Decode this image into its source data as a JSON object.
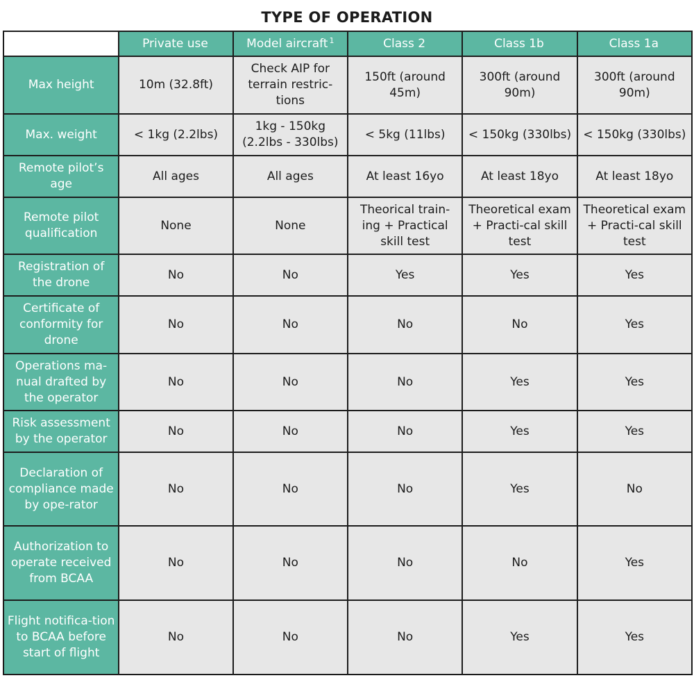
{
  "title": "TYPE OF OPERATION",
  "columns": [
    {
      "label": "Private use",
      "sup": ""
    },
    {
      "label": "Model aircraft",
      "sup": "1"
    },
    {
      "label": "Class 2",
      "sup": ""
    },
    {
      "label": "Class 1b",
      "sup": ""
    },
    {
      "label": "Class 1a",
      "sup": ""
    }
  ],
  "rows": [
    {
      "label": "Max height",
      "cells": [
        "10m (32.8ft)",
        "Check AIP for terrain restric-tions",
        "150ft (around 45m)",
        "300ft (around 90m)",
        "300ft (around 90m)"
      ]
    },
    {
      "label": "Max. weight",
      "cells": [
        "< 1kg (2.2lbs)",
        "1kg - 150kg (2.2lbs - 330lbs)",
        "< 5kg (11lbs)",
        "< 150kg (330lbs)",
        "< 150kg (330lbs)"
      ]
    },
    {
      "label": "Remote pilot’s age",
      "cells": [
        "All ages",
        "All ages",
        "At least 16yo",
        "At least 18yo",
        "At least 18yo"
      ]
    },
    {
      "label": "Remote pilot qualification",
      "cells": [
        "None",
        "None",
        "Theorical train-ing + Practical skill test",
        "Theoretical exam + Practi-cal skill test",
        "Theoretical exam + Practi-cal skill test"
      ]
    },
    {
      "label": "Registration of the drone",
      "cells": [
        "No",
        "No",
        "Yes",
        "Yes",
        "Yes"
      ]
    },
    {
      "label": "Certificate of conformity for drone",
      "cells": [
        "No",
        "No",
        "No",
        "No",
        "Yes"
      ]
    },
    {
      "label": "Operations ma-nual drafted by the operator",
      "cells": [
        "No",
        "No",
        "No",
        "Yes",
        "Yes"
      ]
    },
    {
      "label": "Risk assessment by the operator",
      "cells": [
        "No",
        "No",
        "No",
        "Yes",
        "Yes"
      ]
    },
    {
      "label": "Declaration of compliance made by ope-rator",
      "cells": [
        "No",
        "No",
        "No",
        "Yes",
        "No"
      ]
    },
    {
      "label": "Authorization to operate received from BCAA",
      "cells": [
        "No",
        "No",
        "No",
        "No",
        "Yes"
      ]
    },
    {
      "label": "Flight notifica-tion to BCAA before start of flight",
      "cells": [
        "No",
        "No",
        "No",
        "Yes",
        "Yes"
      ]
    }
  ],
  "colors": {
    "header": "#5cb7a2",
    "cell": "#e7e7e7",
    "border": "#1c1c1c"
  }
}
